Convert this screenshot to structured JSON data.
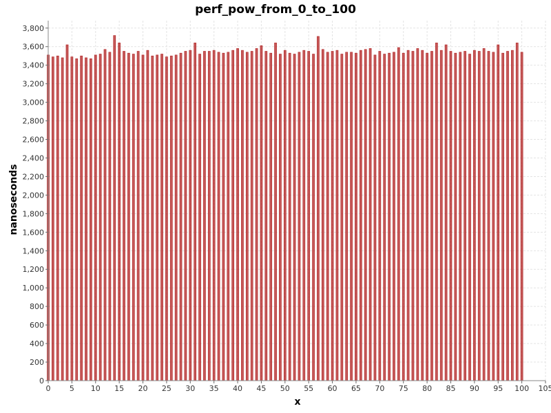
{
  "chart_data": {
    "type": "bar",
    "title": "perf_pow_from_0_to_100",
    "xlabel": "x",
    "ylabel": "nanoseconds",
    "xlim": [
      0,
      105
    ],
    "ylim": [
      0,
      3880
    ],
    "grid": true,
    "color": "#b22222",
    "x_tick_labels": [
      "0",
      "5",
      "10",
      "15",
      "20",
      "25",
      "30",
      "35",
      "40",
      "45",
      "50",
      "55",
      "60",
      "65",
      "70",
      "75",
      "80",
      "85",
      "90",
      "95",
      "100",
      "105"
    ],
    "y_tick_labels": [
      "0",
      "200",
      "400",
      "600",
      "800",
      "1,000",
      "1,200",
      "1,400",
      "1,600",
      "1,800",
      "2,000",
      "2,200",
      "2,400",
      "2,600",
      "2,800",
      "3,000",
      "3,200",
      "3,400",
      "3,600",
      "3,800"
    ],
    "x": [
      0,
      1,
      2,
      3,
      4,
      5,
      6,
      7,
      8,
      9,
      10,
      11,
      12,
      13,
      14,
      15,
      16,
      17,
      18,
      19,
      20,
      21,
      22,
      23,
      24,
      25,
      26,
      27,
      28,
      29,
      30,
      31,
      32,
      33,
      34,
      35,
      36,
      37,
      38,
      39,
      40,
      41,
      42,
      43,
      44,
      45,
      46,
      47,
      48,
      49,
      50,
      51,
      52,
      53,
      54,
      55,
      56,
      57,
      58,
      59,
      60,
      61,
      62,
      63,
      64,
      65,
      66,
      67,
      68,
      69,
      70,
      71,
      72,
      73,
      74,
      75,
      76,
      77,
      78,
      79,
      80,
      81,
      82,
      83,
      84,
      85,
      86,
      87,
      88,
      89,
      90,
      91,
      92,
      93,
      94,
      95,
      96,
      97,
      98,
      99,
      100
    ],
    "values": [
      3510,
      3490,
      3500,
      3480,
      3620,
      3490,
      3470,
      3500,
      3480,
      3470,
      3510,
      3520,
      3570,
      3540,
      3720,
      3640,
      3550,
      3530,
      3520,
      3550,
      3510,
      3560,
      3500,
      3510,
      3520,
      3490,
      3500,
      3510,
      3530,
      3550,
      3560,
      3640,
      3520,
      3550,
      3550,
      3560,
      3540,
      3530,
      3540,
      3560,
      3580,
      3560,
      3540,
      3550,
      3580,
      3610,
      3550,
      3530,
      3640,
      3520,
      3560,
      3530,
      3520,
      3540,
      3560,
      3550,
      3520,
      3710,
      3570,
      3540,
      3550,
      3560,
      3520,
      3540,
      3540,
      3530,
      3560,
      3570,
      3580,
      3510,
      3550,
      3520,
      3530,
      3540,
      3590,
      3530,
      3560,
      3550,
      3580,
      3560,
      3530,
      3550,
      3640,
      3560,
      3620,
      3550,
      3530,
      3540,
      3550,
      3520,
      3560,
      3550,
      3580,
      3550,
      3540,
      3620,
      3530,
      3550,
      3560,
      3640,
      3540
    ]
  }
}
